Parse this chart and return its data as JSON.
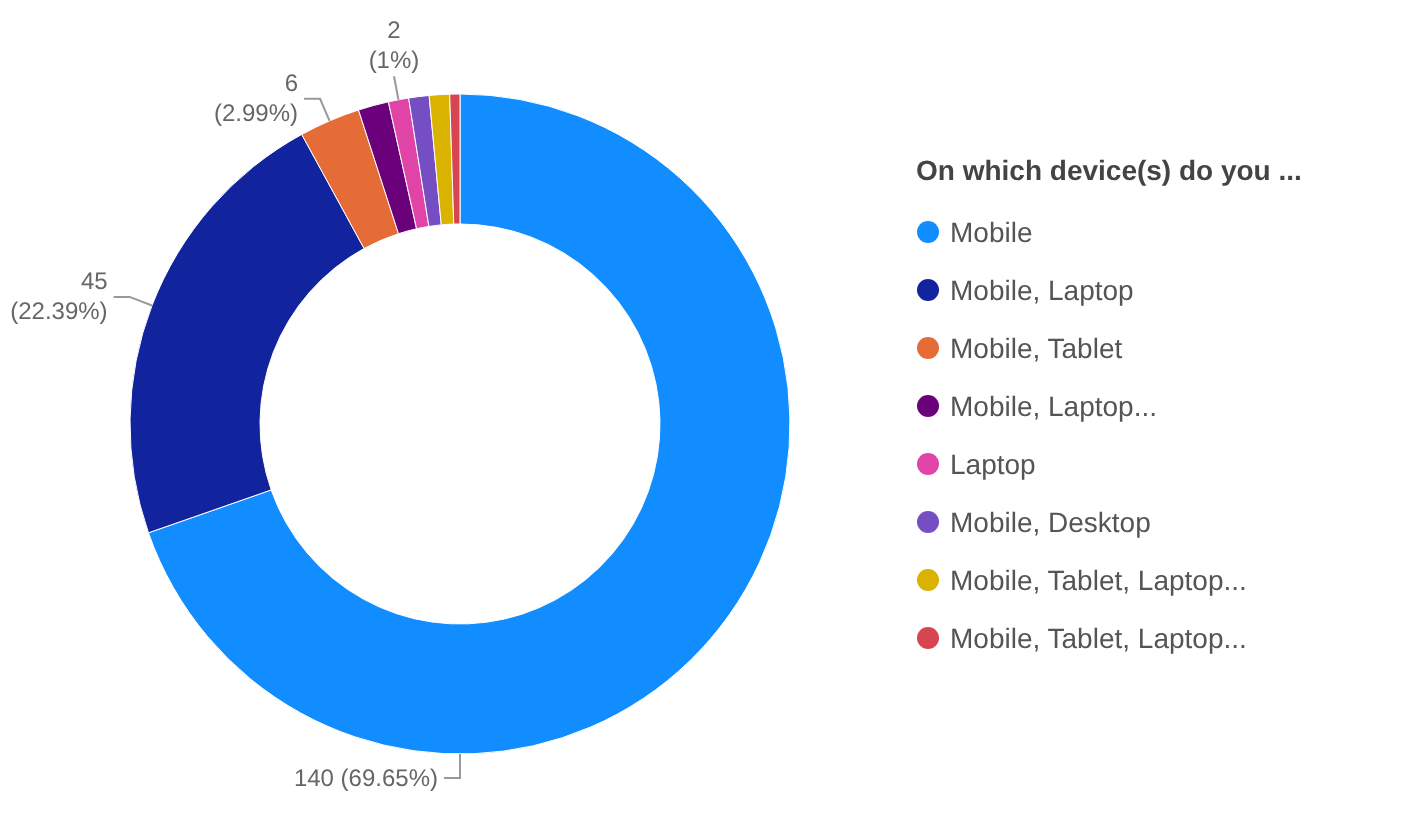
{
  "chart_data": {
    "type": "donut",
    "legend_title": "On which device(s) do you ...",
    "legend": "right",
    "categories": [
      "Mobile",
      "Mobile, Laptop",
      "Mobile, Tablet",
      "Mobile, Laptop...",
      "Laptop",
      "Mobile, Desktop",
      "Mobile, Tablet, Laptop...",
      "Mobile, Tablet, Laptop..."
    ],
    "values": [
      140,
      45,
      6,
      3,
      2,
      2,
      2,
      1
    ],
    "colors": [
      "#118dff",
      "#12239e",
      "#e66c37",
      "#6b007b",
      "#e044a7",
      "#744ec2",
      "#d9b300",
      "#d64550"
    ],
    "value_labels": [
      "140 (69.65%)",
      "45 (22.39%)",
      "6 (2.99%)",
      null,
      "2 (1%)",
      null,
      null,
      null
    ]
  }
}
